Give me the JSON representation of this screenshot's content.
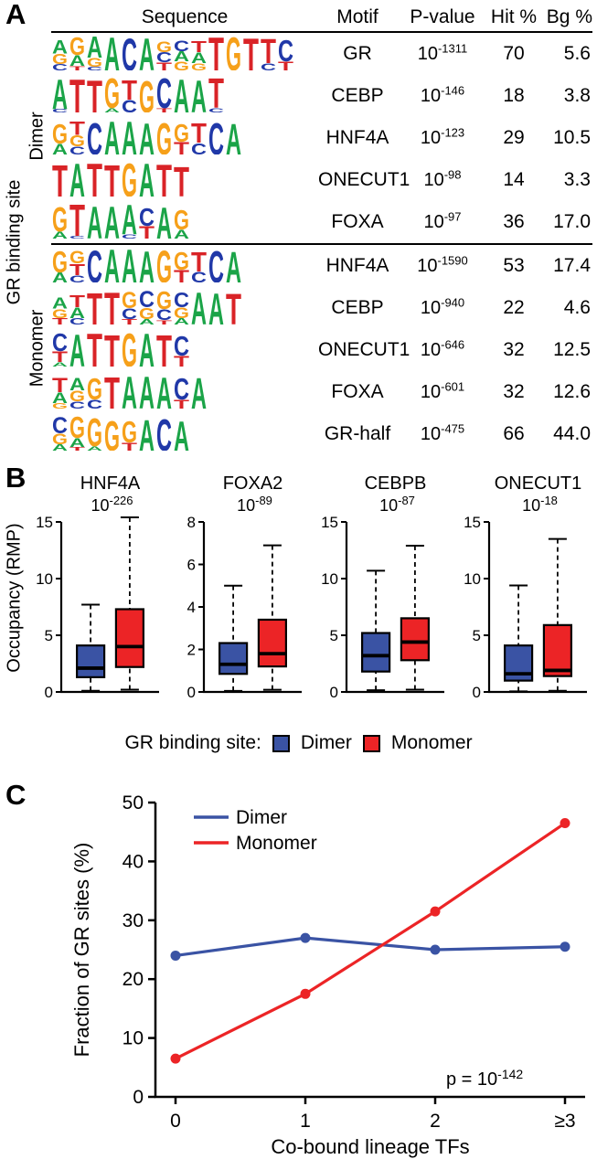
{
  "colors": {
    "dimer": "#3a53a4",
    "monomer": "#ec2426",
    "axis": "#000000",
    "logo": {
      "A": "#1ba448",
      "C": "#2038a8",
      "G": "#f6a01a",
      "T": "#d92327"
    }
  },
  "panelA": {
    "label": "A",
    "side_label": "GR binding site",
    "groups": [
      {
        "label": "Dimer"
      },
      {
        "label": "Monomer"
      }
    ],
    "headers": {
      "sequence": "Sequence",
      "motif": "Motif",
      "pvalue": "P-value",
      "hit": "Hit %",
      "bg": "Bg %"
    },
    "rows": [
      {
        "group": "Dimer",
        "motif": "GR",
        "pvalue": {
          "base": "10",
          "exp": "-1311"
        },
        "hit": "70",
        "bg": "5.6",
        "logo": [
          [
            [
              "A",
              0.38
            ],
            [
              "G",
              0.28
            ],
            [
              "C",
              0.18
            ]
          ],
          [
            [
              "G",
              0.5
            ],
            [
              "A",
              0.3
            ],
            [
              "T",
              0.12
            ]
          ],
          [
            [
              "A",
              0.6
            ],
            [
              "G",
              0.25
            ],
            [
              "C",
              0.1
            ]
          ],
          [
            [
              "A",
              0.95
            ]
          ],
          [
            [
              "C",
              0.92
            ]
          ],
          [
            [
              "A",
              0.92
            ]
          ],
          [
            [
              "G",
              0.3
            ],
            [
              "C",
              0.28
            ],
            [
              "T",
              0.22
            ]
          ],
          [
            [
              "C",
              0.3
            ],
            [
              "A",
              0.28
            ],
            [
              "G",
              0.25
            ]
          ],
          [
            [
              "T",
              0.32
            ],
            [
              "A",
              0.3
            ],
            [
              "G",
              0.2
            ]
          ],
          [
            [
              "T",
              0.95
            ]
          ],
          [
            [
              "G",
              0.95
            ]
          ],
          [
            [
              "T",
              0.92
            ]
          ],
          [
            [
              "T",
              0.7
            ],
            [
              "C",
              0.2
            ]
          ],
          [
            [
              "C",
              0.6
            ],
            [
              "T",
              0.25
            ]
          ]
        ]
      },
      {
        "group": "Dimer",
        "motif": "CEBP",
        "pvalue": {
          "base": "10",
          "exp": "-146"
        },
        "hit": "18",
        "bg": "3.8",
        "logo": [
          [
            [
              "A",
              0.85
            ],
            [
              "C",
              0.1
            ]
          ],
          [
            [
              "T",
              0.95
            ]
          ],
          [
            [
              "T",
              0.92
            ]
          ],
          [
            [
              "G",
              0.85
            ],
            [
              "A",
              0.12
            ]
          ],
          [
            [
              "T",
              0.55
            ],
            [
              "C",
              0.35
            ]
          ],
          [
            [
              "G",
              0.9
            ]
          ],
          [
            [
              "C",
              0.85
            ],
            [
              "T",
              0.12
            ]
          ],
          [
            [
              "A",
              0.95
            ]
          ],
          [
            [
              "A",
              0.92
            ]
          ],
          [
            [
              "T",
              0.85
            ],
            [
              "C",
              0.12
            ]
          ]
        ]
      },
      {
        "group": "Dimer",
        "motif": "HNF4A",
        "pvalue": {
          "base": "10",
          "exp": "-123"
        },
        "hit": "29",
        "bg": "10.5",
        "logo": [
          [
            [
              "G",
              0.55
            ],
            [
              "A",
              0.3
            ]
          ],
          [
            [
              "T",
              0.38
            ],
            [
              "G",
              0.32
            ],
            [
              "C",
              0.22
            ]
          ],
          [
            [
              "C",
              0.9
            ]
          ],
          [
            [
              "A",
              0.95
            ]
          ],
          [
            [
              "A",
              0.95
            ]
          ],
          [
            [
              "A",
              0.9
            ]
          ],
          [
            [
              "G",
              0.9
            ]
          ],
          [
            [
              "G",
              0.5
            ],
            [
              "T",
              0.35
            ]
          ],
          [
            [
              "T",
              0.55
            ],
            [
              "C",
              0.32
            ]
          ],
          [
            [
              "C",
              0.9
            ]
          ],
          [
            [
              "A",
              0.88
            ]
          ]
        ]
      },
      {
        "group": "Dimer",
        "motif": "ONECUT1",
        "pvalue": {
          "base": "10",
          "exp": "-98"
        },
        "hit": "14",
        "bg": "3.3",
        "logo": [
          [
            [
              "T",
              0.9
            ]
          ],
          [
            [
              "A",
              0.95
            ]
          ],
          [
            [
              "T",
              0.95
            ]
          ],
          [
            [
              "T",
              0.9
            ]
          ],
          [
            [
              "G",
              0.95
            ]
          ],
          [
            [
              "A",
              0.95
            ]
          ],
          [
            [
              "T",
              0.92
            ]
          ],
          [
            [
              "T",
              0.85
            ]
          ]
        ]
      },
      {
        "group": "Dimer",
        "motif": "FOXA",
        "pvalue": {
          "base": "10",
          "exp": "-97"
        },
        "hit": "36",
        "bg": "17.0",
        "logo": [
          [
            [
              "G",
              0.7
            ],
            [
              "A",
              0.2
            ]
          ],
          [
            [
              "T",
              0.9
            ],
            [
              "C",
              0.08
            ]
          ],
          [
            [
              "A",
              0.92
            ]
          ],
          [
            [
              "A",
              0.92
            ]
          ],
          [
            [
              "A",
              0.85
            ],
            [
              "C",
              0.12
            ]
          ],
          [
            [
              "C",
              0.5
            ],
            [
              "T",
              0.35
            ]
          ],
          [
            [
              "A",
              0.9
            ]
          ],
          [
            [
              "G",
              0.55
            ],
            [
              "A",
              0.25
            ]
          ]
        ]
      },
      {
        "group": "Monomer",
        "motif": "HNF4A",
        "pvalue": {
          "base": "10",
          "exp": "-1590"
        },
        "hit": "53",
        "bg": "17.4",
        "logo": [
          [
            [
              "G",
              0.6
            ],
            [
              "A",
              0.28
            ]
          ],
          [
            [
              "G",
              0.36
            ],
            [
              "T",
              0.32
            ],
            [
              "C",
              0.2
            ]
          ],
          [
            [
              "C",
              0.92
            ]
          ],
          [
            [
              "A",
              0.95
            ]
          ],
          [
            [
              "A",
              0.95
            ]
          ],
          [
            [
              "A",
              0.9
            ]
          ],
          [
            [
              "G",
              0.92
            ]
          ],
          [
            [
              "G",
              0.5
            ],
            [
              "T",
              0.35
            ]
          ],
          [
            [
              "T",
              0.55
            ],
            [
              "C",
              0.3
            ]
          ],
          [
            [
              "C",
              0.9
            ]
          ],
          [
            [
              "A",
              0.88
            ]
          ]
        ]
      },
      {
        "group": "Monomer",
        "motif": "CEBP",
        "pvalue": {
          "base": "10",
          "exp": "-940"
        },
        "hit": "22",
        "bg": "4.6",
        "logo": [
          [
            [
              "A",
              0.32
            ],
            [
              "G",
              0.26
            ],
            [
              "T",
              0.18
            ]
          ],
          [
            [
              "T",
              0.34
            ],
            [
              "A",
              0.3
            ],
            [
              "C",
              0.18
            ]
          ],
          [
            [
              "T",
              0.9
            ]
          ],
          [
            [
              "T",
              0.92
            ]
          ],
          [
            [
              "G",
              0.45
            ],
            [
              "C",
              0.3
            ],
            [
              "T",
              0.15
            ]
          ],
          [
            [
              "C",
              0.45
            ],
            [
              "G",
              0.32
            ],
            [
              "A",
              0.15
            ]
          ],
          [
            [
              "G",
              0.5
            ],
            [
              "C",
              0.3
            ],
            [
              "T",
              0.12
            ]
          ],
          [
            [
              "C",
              0.42
            ],
            [
              "G",
              0.3
            ],
            [
              "A",
              0.18
            ]
          ],
          [
            [
              "A",
              0.92
            ]
          ],
          [
            [
              "A",
              0.9
            ]
          ],
          [
            [
              "T",
              0.88
            ]
          ]
        ]
      },
      {
        "group": "Monomer",
        "motif": "ONECUT1",
        "pvalue": {
          "base": "10",
          "exp": "-646"
        },
        "hit": "32",
        "bg": "12.5",
        "logo": [
          [
            [
              "C",
              0.5
            ],
            [
              "T",
              0.3
            ],
            [
              "A",
              0.12
            ]
          ],
          [
            [
              "A",
              0.92
            ]
          ],
          [
            [
              "T",
              0.95
            ]
          ],
          [
            [
              "T",
              0.9
            ]
          ],
          [
            [
              "G",
              0.95
            ]
          ],
          [
            [
              "A",
              0.95
            ]
          ],
          [
            [
              "T",
              0.9
            ]
          ],
          [
            [
              "C",
              0.55
            ],
            [
              "T",
              0.3
            ]
          ]
        ]
      },
      {
        "group": "Monomer",
        "motif": "FOXA",
        "pvalue": {
          "base": "10",
          "exp": "-601"
        },
        "hit": "32",
        "bg": "12.6",
        "logo": [
          [
            [
              "T",
              0.4
            ],
            [
              "A",
              0.3
            ],
            [
              "G",
              0.15
            ]
          ],
          [
            [
              "A",
              0.35
            ],
            [
              "G",
              0.3
            ],
            [
              "C",
              0.2
            ]
          ],
          [
            [
              "G",
              0.6
            ],
            [
              "C",
              0.25
            ]
          ],
          [
            [
              "T",
              0.9
            ]
          ],
          [
            [
              "A",
              0.92
            ]
          ],
          [
            [
              "A",
              0.92
            ]
          ],
          [
            [
              "A",
              0.9
            ]
          ],
          [
            [
              "C",
              0.6
            ],
            [
              "T",
              0.25
            ]
          ],
          [
            [
              "A",
              0.88
            ]
          ]
        ]
      },
      {
        "group": "Monomer",
        "motif": "GR-half",
        "pvalue": {
          "base": "10",
          "exp": "-475"
        },
        "hit": "66",
        "bg": "44.0",
        "logo": [
          [
            [
              "C",
              0.45
            ],
            [
              "G",
              0.3
            ],
            [
              "A",
              0.18
            ]
          ],
          [
            [
              "G",
              0.6
            ],
            [
              "A",
              0.25
            ],
            [
              "T",
              0.1
            ]
          ],
          [
            [
              "G",
              0.8
            ],
            [
              "A",
              0.12
            ]
          ],
          [
            [
              "G",
              0.85
            ]
          ],
          [
            [
              "G",
              0.6
            ],
            [
              "T",
              0.22
            ]
          ],
          [
            [
              "A",
              0.88
            ]
          ],
          [
            [
              "C",
              0.9
            ]
          ],
          [
            [
              "A",
              0.85
            ]
          ]
        ]
      }
    ]
  },
  "panelB": {
    "label": "B"
  },
  "panelC": {
    "label": "C"
  },
  "chart_data": [
    {
      "id": "occupancy-boxplots",
      "type": "box",
      "ylabel": "Occupancy (RMP)",
      "legend_title": "GR binding site:",
      "group_labels": [
        "Dimer",
        "Monomer"
      ],
      "plots": [
        {
          "title": "HNF4A",
          "pvalue": {
            "base": "10",
            "exp": "-226"
          },
          "ymax": 15,
          "yticks": [
            0,
            5,
            10,
            15
          ],
          "dimer": {
            "lo": 0.1,
            "q1": 1.3,
            "med": 2.1,
            "q3": 4.1,
            "hi": 7.7
          },
          "monomer": {
            "lo": 0.2,
            "q1": 2.2,
            "med": 4.0,
            "q3": 7.3,
            "hi": 15.4
          }
        },
        {
          "title": "FOXA2",
          "pvalue": {
            "base": "10",
            "exp": "-89"
          },
          "ymax": 8,
          "yticks": [
            0,
            2,
            4,
            6,
            8
          ],
          "dimer": {
            "lo": 0.05,
            "q1": 0.85,
            "med": 1.3,
            "q3": 2.3,
            "hi": 5.0
          },
          "monomer": {
            "lo": 0.1,
            "q1": 1.2,
            "med": 1.8,
            "q3": 3.4,
            "hi": 6.9
          }
        },
        {
          "title": "CEBPB",
          "pvalue": {
            "base": "10",
            "exp": "-87"
          },
          "ymax": 15,
          "yticks": [
            0,
            5,
            10,
            15
          ],
          "dimer": {
            "lo": 0.15,
            "q1": 1.8,
            "med": 3.2,
            "q3": 5.2,
            "hi": 10.7
          },
          "monomer": {
            "lo": 0.2,
            "q1": 2.8,
            "med": 4.4,
            "q3": 6.5,
            "hi": 12.9
          }
        },
        {
          "title": "ONECUT1",
          "pvalue": {
            "base": "10",
            "exp": "-18"
          },
          "ymax": 15,
          "yticks": [
            0,
            5,
            10,
            15
          ],
          "dimer": {
            "lo": 0.05,
            "q1": 1.0,
            "med": 1.6,
            "q3": 4.1,
            "hi": 9.4
          },
          "monomer": {
            "lo": 0.1,
            "q1": 1.4,
            "med": 1.9,
            "q3": 5.9,
            "hi": 13.5
          }
        }
      ]
    },
    {
      "id": "cobound-line",
      "type": "line",
      "xlabel": "Co-bound lineage TFs",
      "ylabel": "Fraction of GR sites (%)",
      "categories": [
        "0",
        "1",
        "2",
        "≥3"
      ],
      "ylim": [
        0,
        50
      ],
      "yticks": [
        0,
        10,
        20,
        30,
        40,
        50
      ],
      "legend_position": "top-left",
      "series": [
        {
          "name": "Dimer",
          "color": "dimer",
          "values": [
            24,
            27,
            25,
            25.5
          ]
        },
        {
          "name": "Monomer",
          "color": "monomer",
          "values": [
            6.5,
            17.5,
            31.5,
            46.5
          ]
        }
      ],
      "annotation": {
        "prefix": "p = 10",
        "exp": "-142"
      }
    }
  ]
}
